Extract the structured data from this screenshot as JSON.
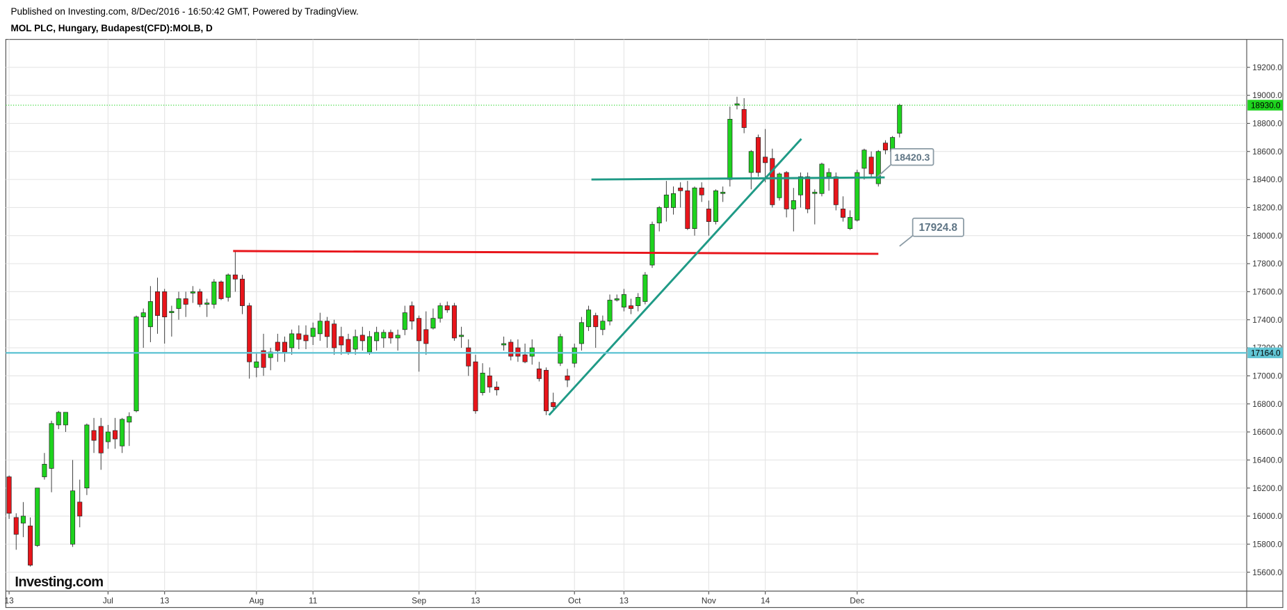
{
  "header": {
    "published": "Published on Investing.com, 8/Dec/2016 - 16:50:42 GMT, Powered by TradingView.",
    "symbol": "MOL PLC, Hungary, Budapest(CFD):MOLB, D"
  },
  "chart_data": {
    "type": "candlestick",
    "logo": "Investing.com",
    "up_color": "#1ed31e",
    "down_color": "#e8151b",
    "grid": true,
    "ylim": [
      15465,
      19399
    ],
    "yticks": [
      {
        "value": 15600,
        "label": "15600.0"
      },
      {
        "value": 15800,
        "label": "15800.0"
      },
      {
        "value": 16000,
        "label": "16000.0"
      },
      {
        "value": 16200,
        "label": "16200.0"
      },
      {
        "value": 16400,
        "label": "16400.0"
      },
      {
        "value": 16600,
        "label": "16600.0"
      },
      {
        "value": 16800,
        "label": "16800.0"
      },
      {
        "value": 17000,
        "label": "17000.0"
      },
      {
        "value": 17200,
        "label": "17200.0"
      },
      {
        "value": 17400,
        "label": "17400.0"
      },
      {
        "value": 17600,
        "label": "17600.0"
      },
      {
        "value": 17800,
        "label": "17800.0"
      },
      {
        "value": 18000,
        "label": "18000.0"
      },
      {
        "value": 18200,
        "label": "18200.0"
      },
      {
        "value": 18400,
        "label": "18400.0"
      },
      {
        "value": 18600,
        "label": "18600.0"
      },
      {
        "value": 18800,
        "label": "18800.0"
      },
      {
        "value": 19000,
        "label": "19000.0"
      },
      {
        "value": 19200,
        "label": "19200.0"
      }
    ],
    "categories": [
      "13",
      null,
      null,
      null,
      null,
      null,
      null,
      null,
      null,
      null,
      null,
      null,
      null,
      null,
      "Jul",
      null,
      null,
      null,
      null,
      null,
      null,
      null,
      "13",
      null,
      null,
      null,
      null,
      null,
      null,
      null,
      null,
      null,
      null,
      null,
      null,
      "Aug",
      null,
      null,
      null,
      null,
      null,
      null,
      null,
      "11",
      null,
      null,
      null,
      null,
      null,
      null,
      null,
      null,
      null,
      null,
      null,
      null,
      null,
      null,
      "Sep",
      null,
      null,
      null,
      null,
      null,
      null,
      null,
      "13",
      null,
      null,
      null,
      null,
      null,
      null,
      null,
      null,
      null,
      null,
      null,
      null,
      null,
      "Oct",
      null,
      null,
      null,
      null,
      null,
      null,
      "13",
      null,
      null,
      null,
      null,
      null,
      null,
      null,
      null,
      null,
      null,
      null,
      "Nov",
      null,
      null,
      null,
      null,
      null,
      null,
      null,
      "14",
      null,
      null,
      null,
      null,
      null,
      null,
      null,
      null,
      null,
      null,
      null,
      null,
      "Dec",
      null,
      null,
      null,
      null,
      null,
      null
    ],
    "open": [
      16280,
      15990,
      15950,
      15930,
      15790,
      16280,
      16340,
      16650,
      16650,
      15800,
      16100,
      16200,
      16610,
      16640,
      16530,
      16610,
      16500,
      16670,
      16750,
      17420,
      17350,
      17600,
      17600,
      17450,
      17480,
      17550,
      17590,
      17600,
      17510,
      17510,
      17670,
      17560,
      17720,
      17690,
      17500,
      17060,
      17180,
      17130,
      17240,
      17240,
      17200,
      17300,
      17290,
      17280,
      17300,
      17390,
      17370,
      17280,
      17260,
      17190,
      17290,
      17170,
      17250,
      17270,
      17310,
      17270,
      17330,
      17500,
      17410,
      17330,
      17340,
      17410,
      17500,
      17500,
      17280,
      17200,
      17100,
      16880,
      17000,
      16920,
      17220,
      17240,
      17200,
      17150,
      17140,
      17050,
      17040,
      16810,
      17090,
      17000,
      17090,
      17230,
      17350,
      17430,
      17330,
      17390,
      17540,
      17490,
      17500,
      17500,
      17530,
      17790,
      18090,
      18200,
      18200,
      18340,
      18320,
      18050,
      18340,
      18190,
      18100,
      18300,
      18400,
      18930,
      18900,
      18450,
      18700,
      18560,
      18550,
      18270,
      18450,
      18190,
      18290,
      18420,
      18300,
      18300,
      18420,
      18420,
      18190,
      18050,
      18110,
      18480,
      18560,
      18370,
      18660,
      18600,
      18730
    ],
    "high": [
      16290,
      16020,
      16100,
      15990,
      16200,
      16450,
      16680,
      16750,
      16740,
      16400,
      16260,
      16660,
      16700,
      16700,
      16650,
      16700,
      16700,
      16740,
      17430,
      17480,
      17640,
      17700,
      17620,
      17500,
      17600,
      17600,
      17640,
      17620,
      17550,
      17690,
      17680,
      17730,
      17890,
      17720,
      17520,
      17160,
      17300,
      17200,
      17300,
      17280,
      17330,
      17360,
      17360,
      17380,
      17450,
      17420,
      17400,
      17350,
      17300,
      17330,
      17350,
      17320,
      17350,
      17330,
      17330,
      17330,
      17500,
      17530,
      17430,
      17460,
      17480,
      17520,
      17530,
      17520,
      17350,
      17260,
      17150,
      17090,
      17060,
      16960,
      17280,
      17260,
      17260,
      17230,
      17260,
      17100,
      17060,
      16880,
      17300,
      17050,
      17230,
      17420,
      17500,
      17450,
      17430,
      17580,
      17580,
      17620,
      17550,
      17590,
      17740,
      18100,
      18210,
      18390,
      18350,
      18380,
      18390,
      18350,
      18380,
      18250,
      18330,
      18350,
      18920,
      18990,
      18980,
      18610,
      18720,
      18760,
      18620,
      18450,
      18460,
      18340,
      18450,
      18450,
      18330,
      18520,
      18480,
      18450,
      18280,
      18180,
      18470,
      18620,
      18600,
      18610,
      18680,
      18710,
      18940
    ],
    "low": [
      15980,
      15760,
      15850,
      15640,
      15780,
      16260,
      16170,
      16620,
      16600,
      15780,
      15920,
      16150,
      16450,
      16330,
      16480,
      16480,
      16450,
      16500,
      16740,
      17200,
      17240,
      17300,
      17230,
      17280,
      17400,
      17420,
      17520,
      17490,
      17420,
      17480,
      17540,
      17530,
      17600,
      17440,
      16980,
      16990,
      17000,
      17040,
      17100,
      17100,
      17150,
      17190,
      17190,
      17220,
      17250,
      17200,
      17150,
      17150,
      17150,
      17150,
      17180,
      17150,
      17180,
      17200,
      17230,
      17180,
      17290,
      17330,
      17030,
      17150,
      17330,
      17380,
      17450,
      17250,
      17200,
      17000,
      16730,
      16860,
      16880,
      16860,
      17180,
      17110,
      17100,
      17090,
      17080,
      16960,
      16720,
      16760,
      17070,
      16920,
      17060,
      17180,
      17320,
      17200,
      17290,
      17360,
      17530,
      17460,
      17440,
      17460,
      17510,
      17770,
      18030,
      18100,
      18150,
      18200,
      18040,
      18000,
      18240,
      18000,
      18080,
      18240,
      18350,
      18900,
      18730,
      18330,
      18420,
      18380,
      18200,
      18250,
      18130,
      18030,
      18200,
      18160,
      18080,
      18280,
      18320,
      18180,
      18100,
      18040,
      18100,
      18400,
      18420,
      18350,
      18580,
      18580,
      18700
    ],
    "close": [
      16020,
      15870,
      16000,
      15650,
      16200,
      16370,
      16660,
      16740,
      16740,
      16180,
      16000,
      16650,
      16540,
      16450,
      16600,
      16550,
      16690,
      16710,
      17420,
      17450,
      17530,
      17430,
      17420,
      17460,
      17550,
      17510,
      17600,
      17510,
      17520,
      17670,
      17550,
      17720,
      17690,
      17500,
      17100,
      17100,
      17060,
      17170,
      17180,
      17170,
      17300,
      17260,
      17250,
      17340,
      17390,
      17280,
      17200,
      17220,
      17170,
      17280,
      17250,
      17280,
      17310,
      17310,
      17270,
      17290,
      17450,
      17390,
      17250,
      17230,
      17410,
      17500,
      17470,
      17270,
      17290,
      17070,
      16750,
      17020,
      16920,
      16900,
      17230,
      17140,
      17140,
      17100,
      17200,
      16980,
      16750,
      16780,
      17280,
      16970,
      17200,
      17380,
      17470,
      17350,
      17390,
      17540,
      17550,
      17580,
      17480,
      17560,
      17720,
      18080,
      18200,
      18290,
      18300,
      18320,
      18050,
      18340,
      18290,
      18100,
      18320,
      18310,
      18830,
      18940,
      18770,
      18600,
      18450,
      18520,
      18220,
      18440,
      18190,
      18250,
      18420,
      18190,
      18310,
      18510,
      18450,
      18220,
      18130,
      18130,
      18450,
      18610,
      18440,
      18600,
      18610,
      18700,
      18930
    ],
    "price_lines": [
      {
        "value": 18930,
        "label": "18930.0",
        "color": "#1ed31e",
        "style": "dotted"
      },
      {
        "value": 17164,
        "label": "17164.0",
        "color": "#62c5d4",
        "style": "solid"
      }
    ],
    "trend_lines": [
      {
        "color": "#e8151b",
        "points": [
          [
            31.7,
            17890
          ],
          [
            123,
            17870
          ]
        ]
      },
      {
        "color": "#1f9a86",
        "points": [
          [
            82.4,
            18400
          ],
          [
            123.9,
            18415
          ]
        ]
      },
      {
        "color": "#1f9a86",
        "points": [
          [
            76.4,
            16720
          ],
          [
            112.1,
            18690
          ]
        ]
      }
    ],
    "callouts": [
      {
        "label": "18420.3",
        "value": 18420.3,
        "x": 122.9
      },
      {
        "label": "17924.8",
        "value": 17924.8,
        "x": 126
      }
    ]
  }
}
